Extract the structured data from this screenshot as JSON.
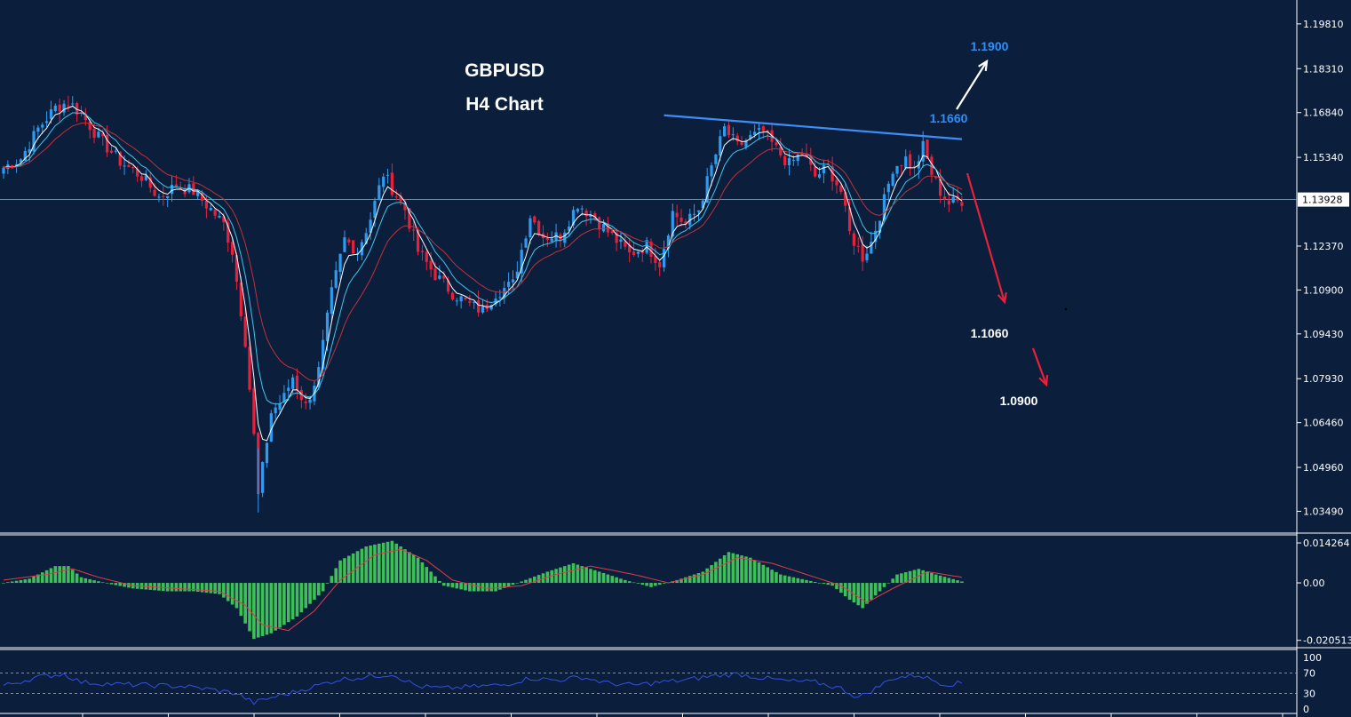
{
  "chart_data": [
    {
      "type": "candlestick",
      "title": "GBPUSD",
      "subtitle": "H4 Chart",
      "ylim": [
        1.0282,
        1.2055
      ],
      "yticks": [
        "1.19810",
        "1.18310",
        "1.16840",
        "1.15340",
        "1.13928",
        "1.12370",
        "1.10900",
        "1.09430",
        "1.07930",
        "1.06460",
        "1.04960",
        "1.03490"
      ],
      "current_price": "1.13928",
      "close_path": [
        [
          0,
          1.15
        ],
        [
          4,
          1.153
        ],
        [
          8,
          1.163
        ],
        [
          12,
          1.17
        ],
        [
          15,
          1.172
        ],
        [
          18,
          1.168
        ],
        [
          22,
          1.16
        ],
        [
          27,
          1.152
        ],
        [
          32,
          1.147
        ],
        [
          36,
          1.14
        ],
        [
          40,
          1.144
        ],
        [
          44,
          1.142
        ],
        [
          48,
          1.136
        ],
        [
          51,
          1.131
        ],
        [
          53,
          1.122
        ],
        [
          56,
          1.092
        ],
        [
          58,
          1.06
        ],
        [
          59,
          1.04
        ],
        [
          62,
          1.068
        ],
        [
          65,
          1.073
        ],
        [
          67,
          1.08
        ],
        [
          70,
          1.07
        ],
        [
          73,
          1.082
        ],
        [
          76,
          1.108
        ],
        [
          79,
          1.126
        ],
        [
          82,
          1.122
        ],
        [
          85,
          1.133
        ],
        [
          88,
          1.148
        ],
        [
          90,
          1.143
        ],
        [
          93,
          1.136
        ],
        [
          96,
          1.122
        ],
        [
          100,
          1.114
        ],
        [
          104,
          1.108
        ],
        [
          108,
          1.104
        ],
        [
          111,
          1.102
        ],
        [
          114,
          1.108
        ],
        [
          118,
          1.111
        ],
        [
          122,
          1.134
        ],
        [
          125,
          1.127
        ],
        [
          129,
          1.127
        ],
        [
          133,
          1.138
        ],
        [
          137,
          1.133
        ],
        [
          141,
          1.127
        ],
        [
          145,
          1.121
        ],
        [
          149,
          1.124
        ],
        [
          152,
          1.118
        ],
        [
          155,
          1.135
        ],
        [
          158,
          1.131
        ],
        [
          161,
          1.136
        ],
        [
          164,
          1.15
        ],
        [
          167,
          1.163
        ],
        [
          170,
          1.157
        ],
        [
          173,
          1.16
        ],
        [
          176,
          1.162
        ],
        [
          179,
          1.156
        ],
        [
          182,
          1.151
        ],
        [
          185,
          1.155
        ],
        [
          188,
          1.147
        ],
        [
          191,
          1.15
        ],
        [
          194,
          1.142
        ],
        [
          196,
          1.128
        ],
        [
          199,
          1.12
        ],
        [
          201,
          1.125
        ],
        [
          204,
          1.139
        ],
        [
          206,
          1.15
        ],
        [
          209,
          1.153
        ],
        [
          211,
          1.149
        ],
        [
          213,
          1.157
        ],
        [
          215,
          1.148
        ],
        [
          217,
          1.142
        ],
        [
          219,
          1.138
        ],
        [
          222,
          1.139
        ]
      ],
      "resistance_line": {
        "from": [
          153,
          1.1675
        ],
        "to": [
          222,
          1.1595
        ]
      },
      "targets": [
        {
          "label": "1.1900",
          "direction": "up",
          "color": "#2f8ef5"
        },
        {
          "label": "1.1660",
          "direction": "up",
          "color": "#2f8ef5"
        },
        {
          "label": "1.1060",
          "direction": "down",
          "color": "#ffffff"
        },
        {
          "label": "1.0900",
          "direction": "down",
          "color": "#ffffff"
        }
      ],
      "colors": {
        "bull": "#2f9bf0",
        "bear": "#e8213a",
        "ma_fast": "#ffffff",
        "ma_mid": "#42c6e8",
        "ma_slow": "#c0303a",
        "trendline": "#3d8ef7"
      }
    },
    {
      "type": "histogram",
      "indicator": "MACD",
      "yticks": [
        "0.014264",
        "0.00",
        "-0.020513"
      ],
      "ylim": [
        -0.0225,
        0.0165
      ],
      "values": [
        [
          0,
          0
        ],
        [
          6,
          0.0015
        ],
        [
          12,
          0.006
        ],
        [
          15,
          0.006
        ],
        [
          18,
          0.002
        ],
        [
          25,
          -0.0005
        ],
        [
          30,
          -0.002
        ],
        [
          38,
          -0.003
        ],
        [
          44,
          -0.003
        ],
        [
          50,
          -0.004
        ],
        [
          54,
          -0.009
        ],
        [
          58,
          -0.02
        ],
        [
          62,
          -0.018
        ],
        [
          68,
          -0.012
        ],
        [
          74,
          -0.003
        ],
        [
          78,
          0.008
        ],
        [
          84,
          0.013
        ],
        [
          90,
          0.015
        ],
        [
          96,
          0.009
        ],
        [
          102,
          -0.001
        ],
        [
          108,
          -0.003
        ],
        [
          114,
          -0.003
        ],
        [
          120,
          0.0005
        ],
        [
          126,
          0.004
        ],
        [
          132,
          0.007
        ],
        [
          138,
          0.004
        ],
        [
          144,
          0.001
        ],
        [
          150,
          -0.0015
        ],
        [
          156,
          0.001
        ],
        [
          162,
          0.004
        ],
        [
          168,
          0.011
        ],
        [
          173,
          0.009
        ],
        [
          180,
          0.003
        ],
        [
          186,
          0.001
        ],
        [
          192,
          -0.001
        ],
        [
          196,
          -0.006
        ],
        [
          199,
          -0.009
        ],
        [
          203,
          -0.003
        ],
        [
          207,
          0.003
        ],
        [
          212,
          0.005
        ],
        [
          216,
          0.003
        ],
        [
          222,
          0.0005
        ]
      ],
      "signal": [
        [
          0,
          0.001
        ],
        [
          10,
          0.003
        ],
        [
          16,
          0.005
        ],
        [
          22,
          0.002
        ],
        [
          30,
          -0.001
        ],
        [
          40,
          -0.002
        ],
        [
          50,
          -0.003
        ],
        [
          56,
          -0.008
        ],
        [
          60,
          -0.015
        ],
        [
          66,
          -0.017
        ],
        [
          72,
          -0.01
        ],
        [
          78,
          0.001
        ],
        [
          86,
          0.01
        ],
        [
          92,
          0.012
        ],
        [
          98,
          0.008
        ],
        [
          104,
          0.001
        ],
        [
          112,
          -0.002
        ],
        [
          120,
          -0.001
        ],
        [
          128,
          0.003
        ],
        [
          136,
          0.006
        ],
        [
          146,
          0.003
        ],
        [
          154,
          0.0
        ],
        [
          162,
          0.003
        ],
        [
          170,
          0.009
        ],
        [
          178,
          0.007
        ],
        [
          186,
          0.003
        ],
        [
          194,
          -0.001
        ],
        [
          200,
          -0.007
        ],
        [
          206,
          -0.002
        ],
        [
          214,
          0.004
        ],
        [
          222,
          0.002
        ]
      ],
      "colors": {
        "bars": "#3fbf59",
        "signal": "#e23b4a"
      }
    },
    {
      "type": "line",
      "indicator": "RSI",
      "yticks": [
        "100",
        "70",
        "30",
        "0"
      ],
      "ylim": [
        0,
        100
      ],
      "levels": [
        70,
        30
      ],
      "values": [
        [
          0,
          45
        ],
        [
          8,
          62
        ],
        [
          14,
          68
        ],
        [
          18,
          52
        ],
        [
          26,
          48
        ],
        [
          34,
          46
        ],
        [
          42,
          44
        ],
        [
          48,
          38
        ],
        [
          54,
          30
        ],
        [
          58,
          12
        ],
        [
          62,
          22
        ],
        [
          66,
          30
        ],
        [
          72,
          44
        ],
        [
          78,
          58
        ],
        [
          84,
          62
        ],
        [
          90,
          68
        ],
        [
          96,
          44
        ],
        [
          102,
          40
        ],
        [
          108,
          43
        ],
        [
          116,
          47
        ],
        [
          122,
          60
        ],
        [
          128,
          56
        ],
        [
          134,
          62
        ],
        [
          140,
          50
        ],
        [
          146,
          46
        ],
        [
          152,
          52
        ],
        [
          158,
          56
        ],
        [
          164,
          64
        ],
        [
          170,
          68
        ],
        [
          176,
          60
        ],
        [
          182,
          54
        ],
        [
          188,
          52
        ],
        [
          194,
          40
        ],
        [
          198,
          22
        ],
        [
          202,
          40
        ],
        [
          206,
          60
        ],
        [
          212,
          66
        ],
        [
          218,
          48
        ],
        [
          222,
          50
        ]
      ],
      "colors": {
        "line": "#3550e0",
        "levels": "#a8b4c8"
      }
    }
  ]
}
